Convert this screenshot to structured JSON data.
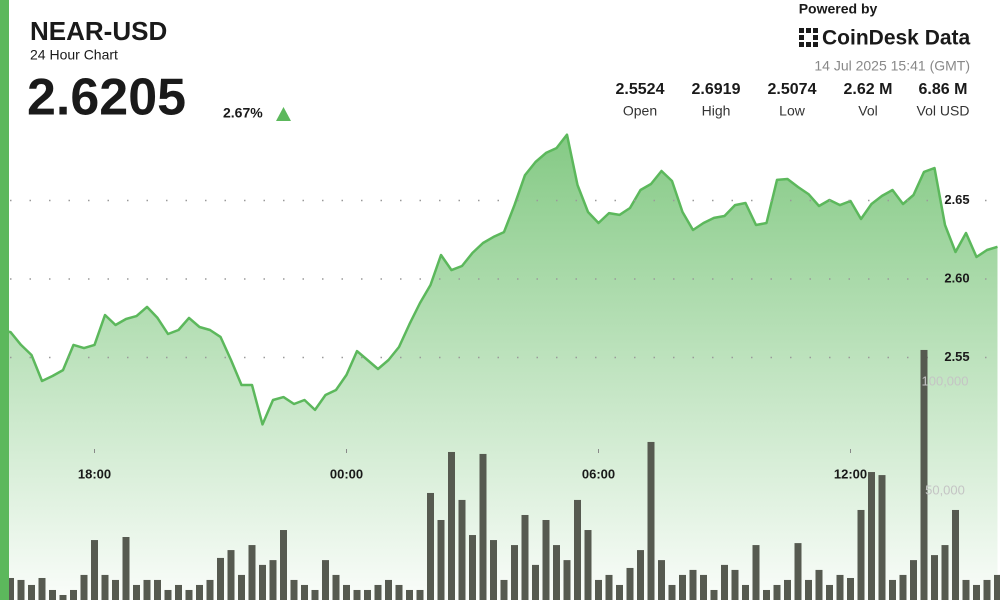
{
  "header": {
    "price": "2.6205",
    "change": "2.67%",
    "powered_by": "Powered by",
    "brand": "CoinDesk Data",
    "timestamp": "14 Jul 2025 15:41 (GMT)",
    "stats": [
      {
        "value": "2.5524",
        "label": "Open"
      },
      {
        "value": "2.6919",
        "label": "High"
      },
      {
        "value": "2.5074",
        "label": "Low"
      },
      {
        "value": "2.62 M",
        "label": "Vol"
      },
      {
        "value": "6.86 M",
        "label": "Vol USD"
      }
    ]
  },
  "chart_data": {
    "type": "line",
    "title": "NEAR-USD",
    "subtitle": "24 Hour Chart",
    "categories": [
      null,
      null,
      null,
      null,
      null,
      null,
      null,
      null,
      null,
      "18:00",
      null,
      null,
      null,
      null,
      null,
      null,
      null,
      null,
      null,
      null,
      null,
      null,
      null,
      null,
      null,
      null,
      null,
      null,
      null,
      null,
      null,
      null,
      null,
      "00:00",
      null,
      null,
      null,
      null,
      null,
      null,
      null,
      null,
      null,
      null,
      null,
      null,
      null,
      null,
      null,
      null,
      null,
      null,
      null,
      null,
      null,
      null,
      null,
      "06:00",
      null,
      null,
      null,
      null,
      null,
      null,
      null,
      null,
      null,
      null,
      null,
      null,
      null,
      null,
      null,
      null,
      null,
      null,
      null,
      null,
      null,
      null,
      null,
      "12:00",
      null,
      null,
      null,
      null,
      null,
      null,
      null,
      null,
      null,
      null,
      null,
      null,
      null,
      null
    ],
    "series": [
      {
        "type": "line",
        "color": "#5cb85c",
        "values": [
          2.5675,
          2.5662,
          2.558,
          2.5516,
          2.535,
          2.5382,
          2.542,
          2.558,
          2.556,
          2.558,
          2.5771,
          2.5707,
          2.5745,
          2.5764,
          2.5822,
          2.5752,
          2.565,
          2.5675,
          2.5752,
          2.5694,
          2.5675,
          2.5631,
          2.5484,
          2.5325,
          2.5325,
          2.5074,
          2.5229,
          2.5248,
          2.5204,
          2.5229,
          2.5166,
          2.5261,
          2.5293,
          2.5389,
          2.5541,
          2.5484,
          2.5427,
          2.5484,
          2.5567,
          2.5713,
          2.5847,
          2.5962,
          2.6153,
          2.6057,
          2.6083,
          2.6166,
          2.6229,
          2.6268,
          2.6299,
          2.6471,
          2.6662,
          2.6745,
          2.6803,
          2.6834,
          2.6919,
          2.6599,
          2.6427,
          2.6357,
          2.642,
          2.6408,
          2.6452,
          2.6567,
          2.6605,
          2.6688,
          2.6624,
          2.6427,
          2.6312,
          2.6357,
          2.6389,
          2.6401,
          2.6471,
          2.6484,
          2.6344,
          2.6357,
          2.6631,
          2.6637,
          2.6586,
          2.6541,
          2.6465,
          2.6503,
          2.6471,
          2.6497,
          2.6382,
          2.6478,
          2.6529,
          2.6567,
          2.6478,
          2.6535,
          2.6682,
          2.6707,
          2.6344,
          2.6172,
          2.6293,
          2.614,
          2.6185,
          2.6205
        ]
      },
      {
        "type": "bar",
        "axis": "y2",
        "color": "#565a50",
        "values": [
          10100,
          10100,
          9200,
          6900,
          10100,
          4600,
          2300,
          4600,
          11500,
          27500,
          11500,
          9200,
          28900,
          6900,
          9200,
          9200,
          4600,
          6900,
          4600,
          6900,
          9200,
          19300,
          22900,
          11500,
          25200,
          16100,
          18300,
          32100,
          9200,
          6900,
          4600,
          18300,
          11500,
          6900,
          4600,
          4600,
          6900,
          9200,
          6900,
          4600,
          4600,
          49100,
          36700,
          67900,
          45900,
          29800,
          67000,
          27500,
          9200,
          25200,
          39000,
          16100,
          36700,
          25200,
          18300,
          45900,
          32100,
          9200,
          11500,
          6900,
          14700,
          22900,
          72500,
          18300,
          6900,
          11500,
          13800,
          11500,
          4600,
          16100,
          13800,
          6900,
          25200,
          4600,
          6900,
          9200,
          26100,
          9200,
          13800,
          6900,
          11500,
          10100,
          41300,
          58700,
          57300,
          9200,
          11500,
          18300,
          114700,
          20600,
          25200,
          41300,
          9200,
          6900,
          9200,
          11500
        ]
      }
    ],
    "ylim": [
      2.4,
      2.7
    ],
    "yticks": [
      2.55,
      {
        "value": 2.6,
        "label": "2.60"
      },
      2.65
    ],
    "y2lim": [
      0,
      200000
    ],
    "y2ticks": [
      {
        "value": 50000,
        "label": "50,000"
      },
      {
        "value": 100000,
        "label": "100,000"
      }
    ],
    "grid": true
  }
}
